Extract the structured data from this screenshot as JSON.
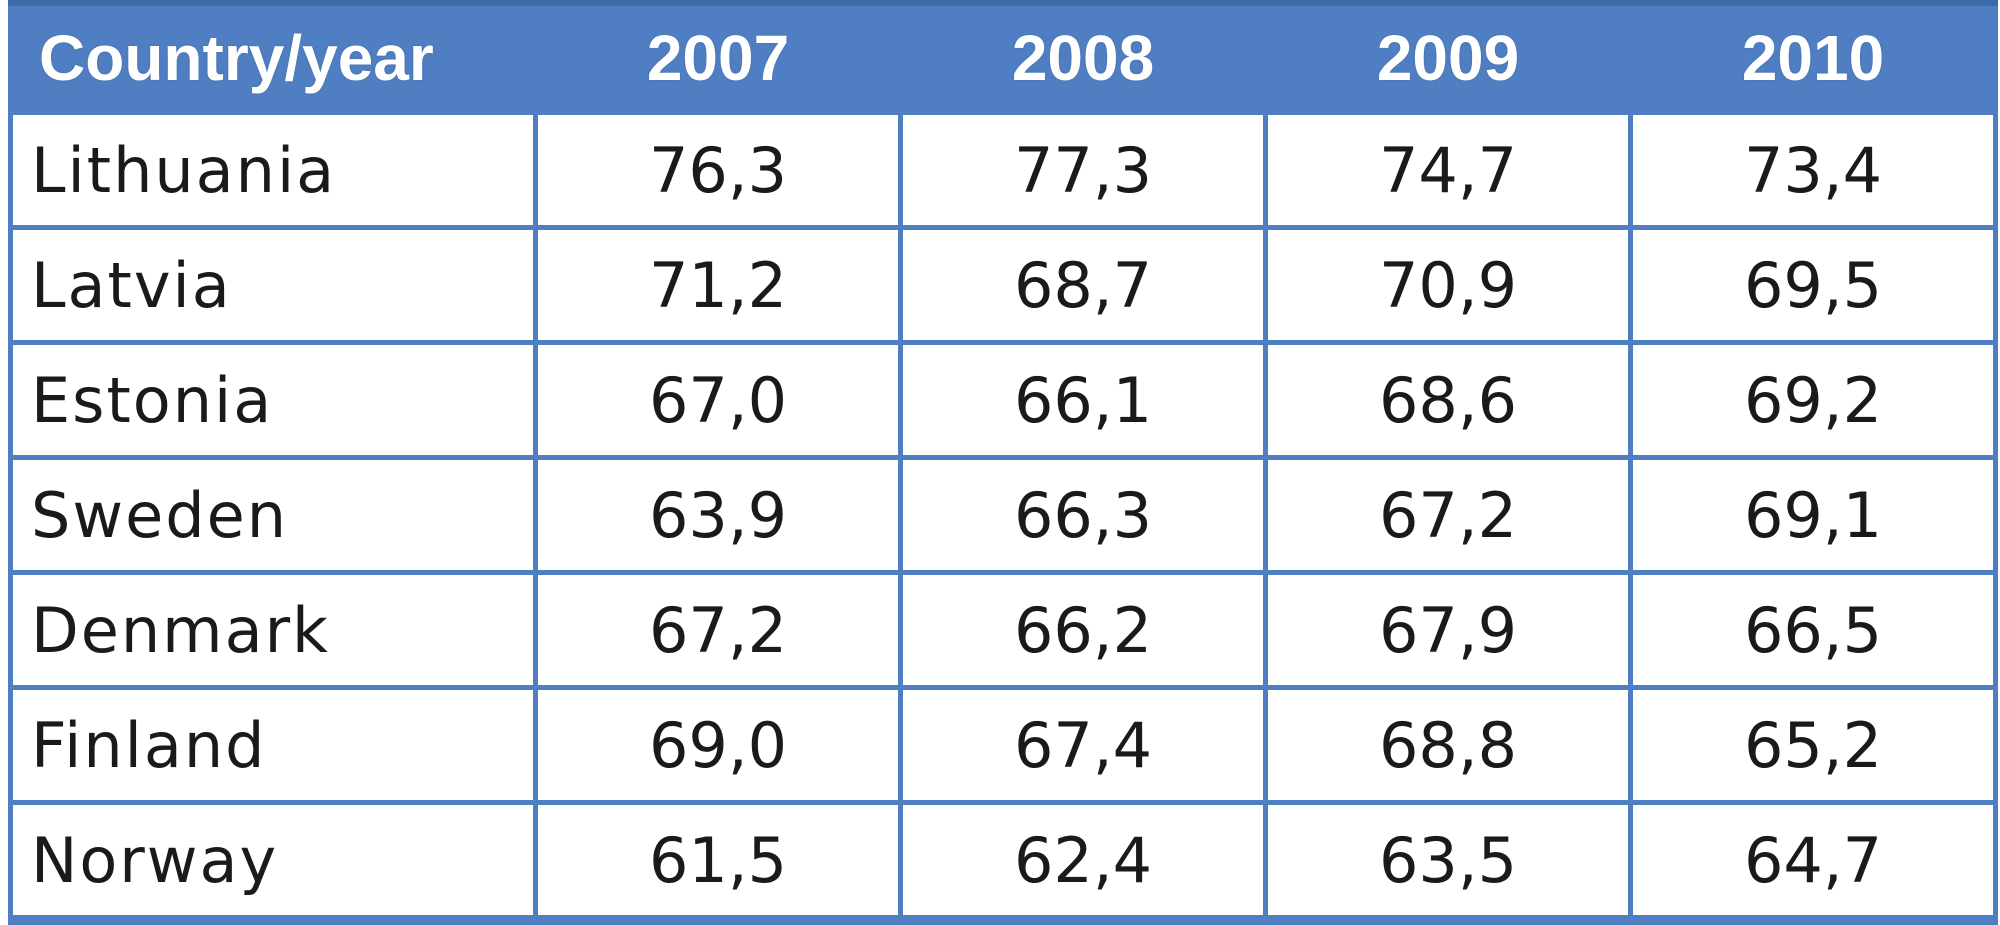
{
  "chart_data": {
    "type": "table",
    "columns": [
      "Country/year",
      "2007",
      "2008",
      "2009",
      "2010"
    ],
    "rows": [
      {
        "country": "Lithuania",
        "values": [
          "76,3",
          "77,3",
          "74,7",
          "73,4"
        ]
      },
      {
        "country": "Latvia",
        "values": [
          "71,2",
          "68,7",
          "70,9",
          "69,5"
        ]
      },
      {
        "country": "Estonia",
        "values": [
          "67,0",
          "66,1",
          "68,6",
          "69,2"
        ]
      },
      {
        "country": "Sweden",
        "values": [
          "63,9",
          "66,3",
          "67,2",
          "69,1"
        ]
      },
      {
        "country": "Denmark",
        "values": [
          "67,2",
          "66,2",
          "67,9",
          "66,5"
        ]
      },
      {
        "country": "Finland",
        "values": [
          "69,0",
          "67,4",
          "68,8",
          "65,2"
        ]
      },
      {
        "country": "Norway",
        "values": [
          "61,5",
          "62,4",
          "63,5",
          "64,7"
        ]
      }
    ]
  },
  "colors": {
    "header_background": "#4f7fc2",
    "header_text": "#ffffff",
    "grid_lines": "#4f7fc2"
  }
}
